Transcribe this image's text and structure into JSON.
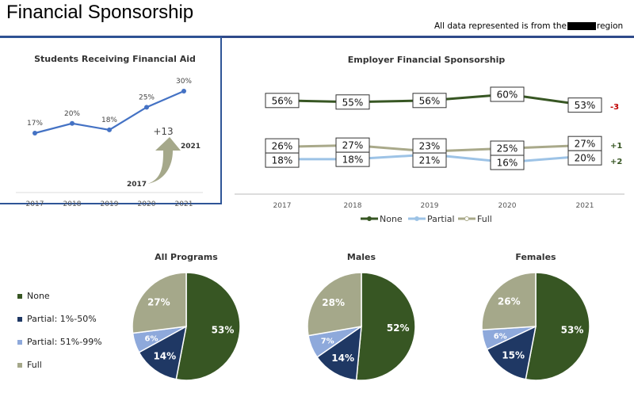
{
  "header": {
    "title": "Financial Sponsorship",
    "note_prefix": "All data represented is from the",
    "note_suffix": "region"
  },
  "chart_data": [
    {
      "type": "line",
      "title": "Students Receiving Financial Aid",
      "categories": [
        "2017",
        "2018",
        "2019",
        "2020",
        "2021"
      ],
      "values": [
        17,
        20,
        18,
        25,
        30
      ],
      "value_labels": [
        "17%",
        "20%",
        "18%",
        "25%",
        "30%"
      ],
      "color": "#4472C4",
      "annotation": {
        "change": "+13",
        "from": "2017",
        "to": "2021"
      }
    },
    {
      "type": "line",
      "title": "Employer Financial Sponsorship",
      "categories": [
        "2017",
        "2018",
        "2019",
        "2020",
        "2021"
      ],
      "series": [
        {
          "name": "None",
          "values": [
            56,
            55,
            56,
            60,
            53
          ],
          "color": "#375623",
          "change": "-3",
          "change_color": "#C00000"
        },
        {
          "name": "Partial",
          "values": [
            18,
            18,
            21,
            16,
            20
          ],
          "color": "#9DC3E6",
          "change": "+2",
          "change_color": "#375623"
        },
        {
          "name": "Full",
          "values": [
            26,
            27,
            23,
            25,
            27
          ],
          "color": "#A9A98A",
          "change": "+1",
          "change_color": "#375623"
        }
      ],
      "legend": "bottom"
    },
    {
      "type": "pie",
      "title": "All Programs",
      "labels": [
        "None",
        "Partial: 1%-50%",
        "Partial: 51%-99%",
        "Full"
      ],
      "values": [
        53,
        14,
        6,
        27
      ]
    },
    {
      "type": "pie",
      "title": "Males",
      "labels": [
        "None",
        "Partial: 1%-50%",
        "Partial: 51%-99%",
        "Full"
      ],
      "values": [
        52,
        14,
        7,
        28
      ]
    },
    {
      "type": "pie",
      "title": "Females",
      "labels": [
        "None",
        "Partial: 1%-50%",
        "Partial: 51%-99%",
        "Full"
      ],
      "values": [
        53,
        15,
        6,
        26
      ]
    }
  ],
  "pie_legend": [
    {
      "label": "None",
      "color": "#375623"
    },
    {
      "label": "Partial:  1%-50%",
      "color": "#1F3864"
    },
    {
      "label": "Partial: 51%-99%",
      "color": "#8EA9DB"
    },
    {
      "label": "Full",
      "color": "#A5A88A"
    }
  ]
}
